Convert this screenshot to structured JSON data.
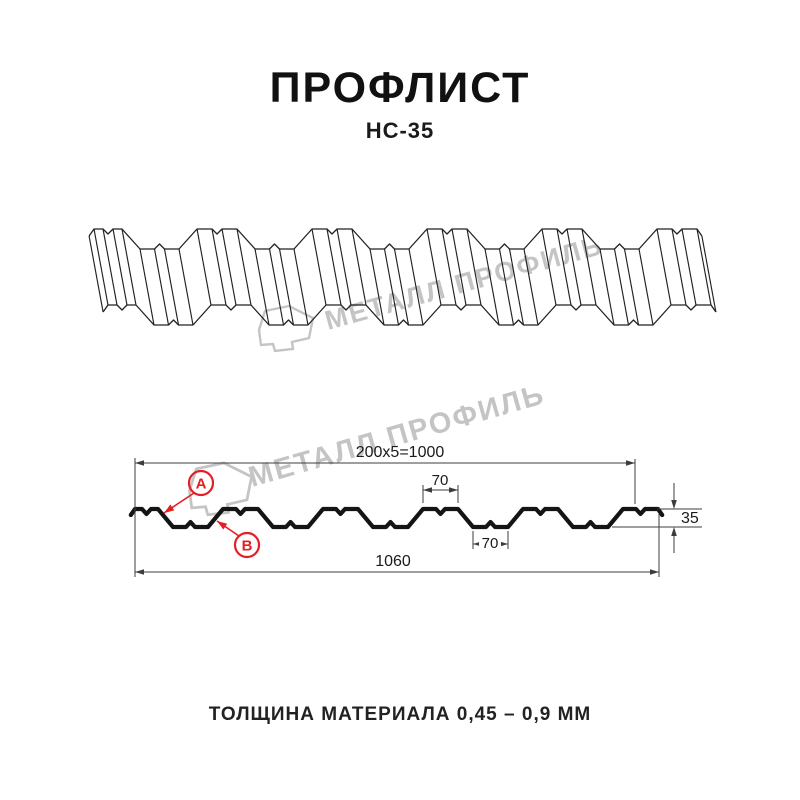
{
  "title": "ПРОФЛИСТ",
  "subtitle": "НС-35",
  "footer": "ТОЛЩИНА МАТЕРИАЛА 0,45 – 0,9 ММ",
  "watermark": {
    "brand": "МЕТАЛЛ ПРОФИЛЬ"
  },
  "colors": {
    "accent_red": "#e31e24",
    "line_dark": "#1a1a1a",
    "dim_line": "#3c3c3c",
    "watermark_gray": "#c4c4c4"
  },
  "diagram": {
    "dim_pitch_total": "200x5=1000",
    "dim_top_flange": "70",
    "dim_bottom_flange": "70",
    "dim_height": "35",
    "dim_overall_width": "1060",
    "callout_a": "A",
    "callout_b": "B"
  }
}
